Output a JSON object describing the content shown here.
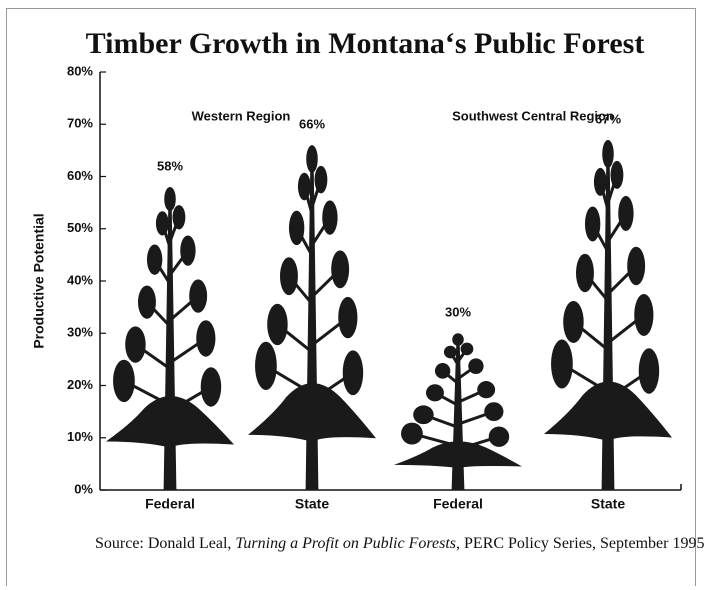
{
  "chart_data": {
    "type": "pictograph",
    "title": "Timber Growth in Montana‘s Public Forest",
    "y_label": "Productive Potential",
    "group_labels": [
      "Western Region",
      "Southwest Central Region"
    ],
    "categories": [
      "Federal",
      "State",
      "Federal",
      "State"
    ],
    "values": [
      58,
      66,
      30,
      67
    ],
    "value_labels": [
      "58%",
      "66%",
      "30%",
      "67%"
    ],
    "color": "#1a1a1a",
    "ylim": [
      0,
      80
    ],
    "yticks": [
      {
        "value": 0,
        "label": "0%"
      },
      {
        "value": 10,
        "label": "10%"
      },
      {
        "value": 20,
        "label": "20%"
      },
      {
        "value": 30,
        "label": "30%"
      },
      {
        "value": 40,
        "label": "40%"
      },
      {
        "value": 50,
        "label": "50%"
      },
      {
        "value": 60,
        "label": "60%"
      },
      {
        "value": 70,
        "label": "70%"
      },
      {
        "value": 80,
        "label": "80%"
      }
    ],
    "grid": false
  },
  "source": [
    "Source: Donald Leal, ",
    "Turning a Profit on Public Forests",
    ", PERC Policy Series, September 1995."
  ]
}
